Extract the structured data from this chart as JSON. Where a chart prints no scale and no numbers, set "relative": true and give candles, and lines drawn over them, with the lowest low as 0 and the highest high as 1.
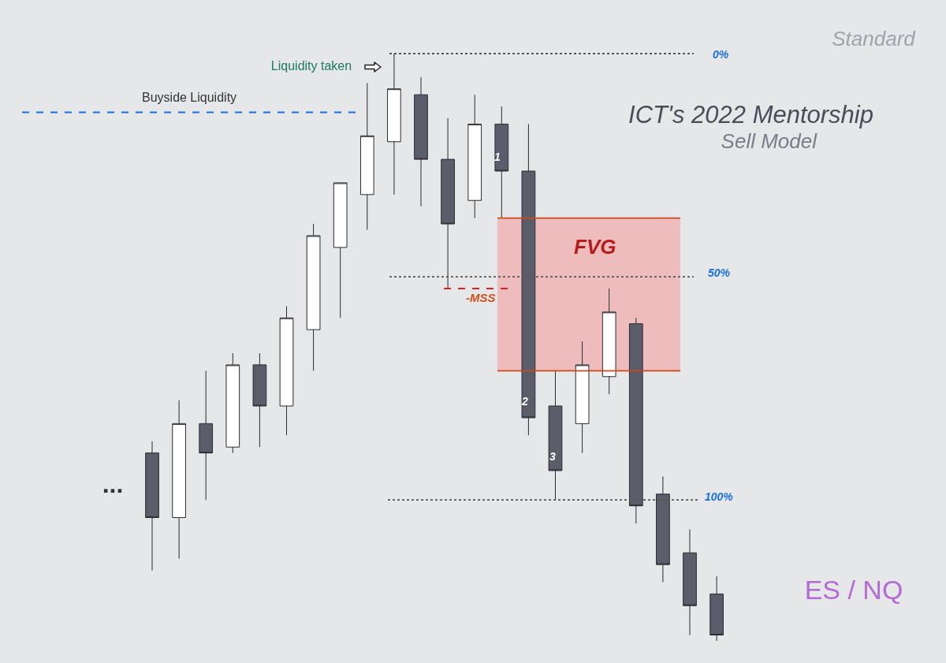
{
  "chart_data": {
    "type": "candlestick",
    "title": "ICT's 2022 Mentorship",
    "subtitle": "Sell Model",
    "relative": true,
    "legend": false,
    "categories": [
      null,
      null,
      null,
      null,
      null,
      null,
      null,
      null,
      null,
      null,
      null,
      null,
      null,
      null,
      null,
      null,
      null,
      null,
      null,
      null,
      null,
      null
    ],
    "ohlc": [
      [
        0.32,
        0.34,
        0.12,
        0.21
      ],
      [
        0.21,
        0.41,
        0.14,
        0.37
      ],
      [
        0.37,
        0.46,
        0.24,
        0.32
      ],
      [
        0.33,
        0.49,
        0.32,
        0.47
      ],
      [
        0.47,
        0.49,
        0.33,
        0.4
      ],
      [
        0.4,
        0.57,
        0.35,
        0.55
      ],
      [
        0.53,
        0.71,
        0.46,
        0.69
      ],
      [
        0.67,
        0.78,
        0.55,
        0.78
      ],
      [
        0.76,
        0.95,
        0.7,
        0.86
      ],
      [
        0.85,
        1,
        0.76,
        0.94
      ],
      [
        0.93,
        0.96,
        0.74,
        0.82
      ],
      [
        0.82,
        0.89,
        0.6,
        0.71
      ],
      [
        0.75,
        0.93,
        0.72,
        0.88
      ],
      [
        0.88,
        0.91,
        0.72,
        0.8
      ],
      [
        0.8,
        0.88,
        0.35,
        0.38
      ],
      [
        0.4,
        0.46,
        0.24,
        0.29
      ],
      [
        0.37,
        0.51,
        0.32,
        0.47
      ],
      [
        0.45,
        0.6,
        0.42,
        0.56
      ],
      [
        0.54,
        0.55,
        0.2,
        0.23
      ],
      [
        0.25,
        0.28,
        0.1,
        0.13
      ],
      [
        0.15,
        0.19,
        0.01,
        0.06
      ],
      [
        0.08,
        0.11,
        0,
        0.01
      ]
    ],
    "colors": [
      "#5b5d6a",
      "#ffffff",
      "#5b5d6a",
      "#ffffff",
      "#5b5d6a",
      "#ffffff",
      "#ffffff",
      "#ffffff",
      "#ffffff",
      "#ffffff",
      "#5b5d6a",
      "#5b5d6a",
      "#ffffff",
      "#5b5d6a",
      "#5b5d6a",
      "#5b5d6a",
      "#ffffff",
      "#ffffff",
      "#5b5d6a",
      "#5b5d6a",
      "#5b5d6a",
      "#5b5d6a"
    ],
    "ref_lines": [
      {
        "axis": "y",
        "value": 1,
        "color": "#555555",
        "line_style": "dotted"
      },
      {
        "axis": "y",
        "value": 0.62,
        "color": "#555555",
        "line_style": "dotted"
      },
      {
        "axis": "y",
        "value": 0.24,
        "color": "#555555",
        "line_style": "dotted"
      },
      {
        "axis": "y",
        "value": 0.9,
        "label": "Buyside Liquidity",
        "color": "#1a6fe0",
        "line_style": "dashed"
      },
      {
        "axis": "y",
        "value": 0.6,
        "label": "-MSS",
        "color": "#e02020",
        "line_style": "dashed"
      },
      {
        "axis": "y",
        "value": 0.72,
        "color": "#cc4a1a",
        "line_style": "solid"
      },
      {
        "axis": "y",
        "value": 0.46,
        "color": "#cc4a1a",
        "line_style": "solid"
      }
    ],
    "bands": [
      {
        "axis": "y",
        "from": 0.46,
        "to": 0.72,
        "label": "FVG",
        "color": "#eeb4b4"
      }
    ],
    "annotations": [
      "Liquidity taken",
      "1",
      "2",
      "3",
      "...",
      "Standard",
      "ES / NQ",
      "0%",
      "50%",
      "100%"
    ]
  }
}
